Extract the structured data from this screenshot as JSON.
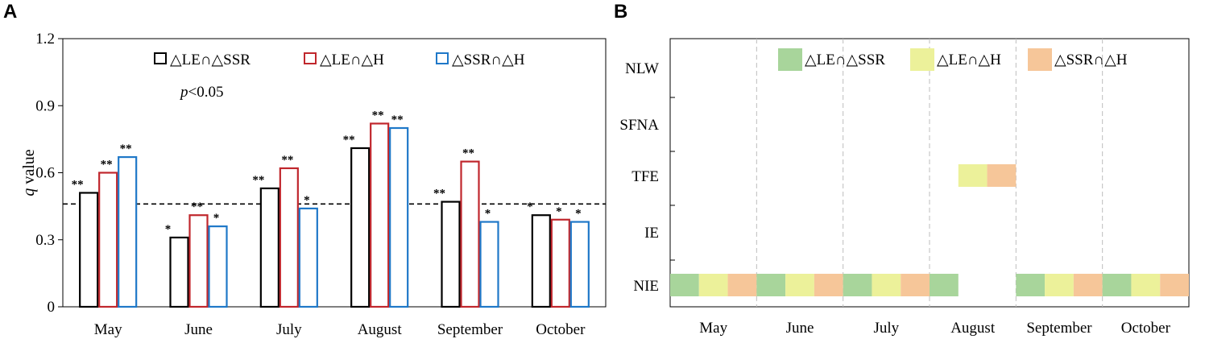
{
  "chart_data": [
    {
      "panel": "A",
      "type": "bar",
      "ylabel_italic": "q",
      "ylabel_rest": " value",
      "ylim": [
        0,
        1.2
      ],
      "yticks": [
        "0",
        "0.3",
        "0.6",
        "0.9",
        "1.2"
      ],
      "ytick_values": [
        0,
        0.3,
        0.6,
        0.9,
        1.2
      ],
      "categories": [
        "May",
        "June",
        "July",
        "August",
        "September",
        "October"
      ],
      "series": [
        {
          "name": "△LE∩△SSR",
          "color": "#000000",
          "values": [
            0.51,
            0.31,
            0.53,
            0.71,
            0.47,
            0.41
          ],
          "sig": [
            "**",
            "*",
            "**",
            "**",
            "**",
            "*"
          ]
        },
        {
          "name": "△LE∩△H",
          "color": "#c0272d",
          "values": [
            0.6,
            0.41,
            0.62,
            0.82,
            0.65,
            0.39
          ],
          "sig": [
            "**",
            "**",
            "**",
            "**",
            "**",
            "*"
          ]
        },
        {
          "name": "△SSR∩△H",
          "color": "#1f78c8",
          "values": [
            0.67,
            0.36,
            0.44,
            0.8,
            0.38,
            0.38
          ],
          "sig": [
            "**",
            "*",
            "*",
            "**",
            "*",
            "*"
          ]
        }
      ],
      "threshold": 0.46,
      "annotation_italic": "p",
      "annotation_rest": "<0.05"
    },
    {
      "panel": "B",
      "type": "heatmap",
      "categories": [
        "May",
        "June",
        "July",
        "August",
        "September",
        "October"
      ],
      "rows": [
        "NLW",
        "SFNA",
        "TFE",
        "IE",
        "NIE"
      ],
      "legend": [
        {
          "name": "△LE∩△SSR",
          "color": "#a8d59b"
        },
        {
          "name": "△LE∩△H",
          "color": "#ecf19a"
        },
        {
          "name": "△SSR∩△H",
          "color": "#f6c699"
        }
      ],
      "cells": {
        "NLW": [
          [],
          [],
          [],
          [],
          [],
          []
        ],
        "SFNA": [
          [],
          [],
          [],
          [],
          [],
          []
        ],
        "TFE": [
          [],
          [],
          [],
          [
            1,
            2
          ],
          [],
          []
        ],
        "IE": [
          [],
          [],
          [],
          [],
          [],
          []
        ],
        "NIE": [
          [
            0,
            1,
            2
          ],
          [
            0,
            1,
            2
          ],
          [
            0,
            1,
            2
          ],
          [
            0
          ],
          [
            0,
            1,
            2
          ],
          [
            0,
            1,
            2
          ]
        ]
      }
    }
  ]
}
